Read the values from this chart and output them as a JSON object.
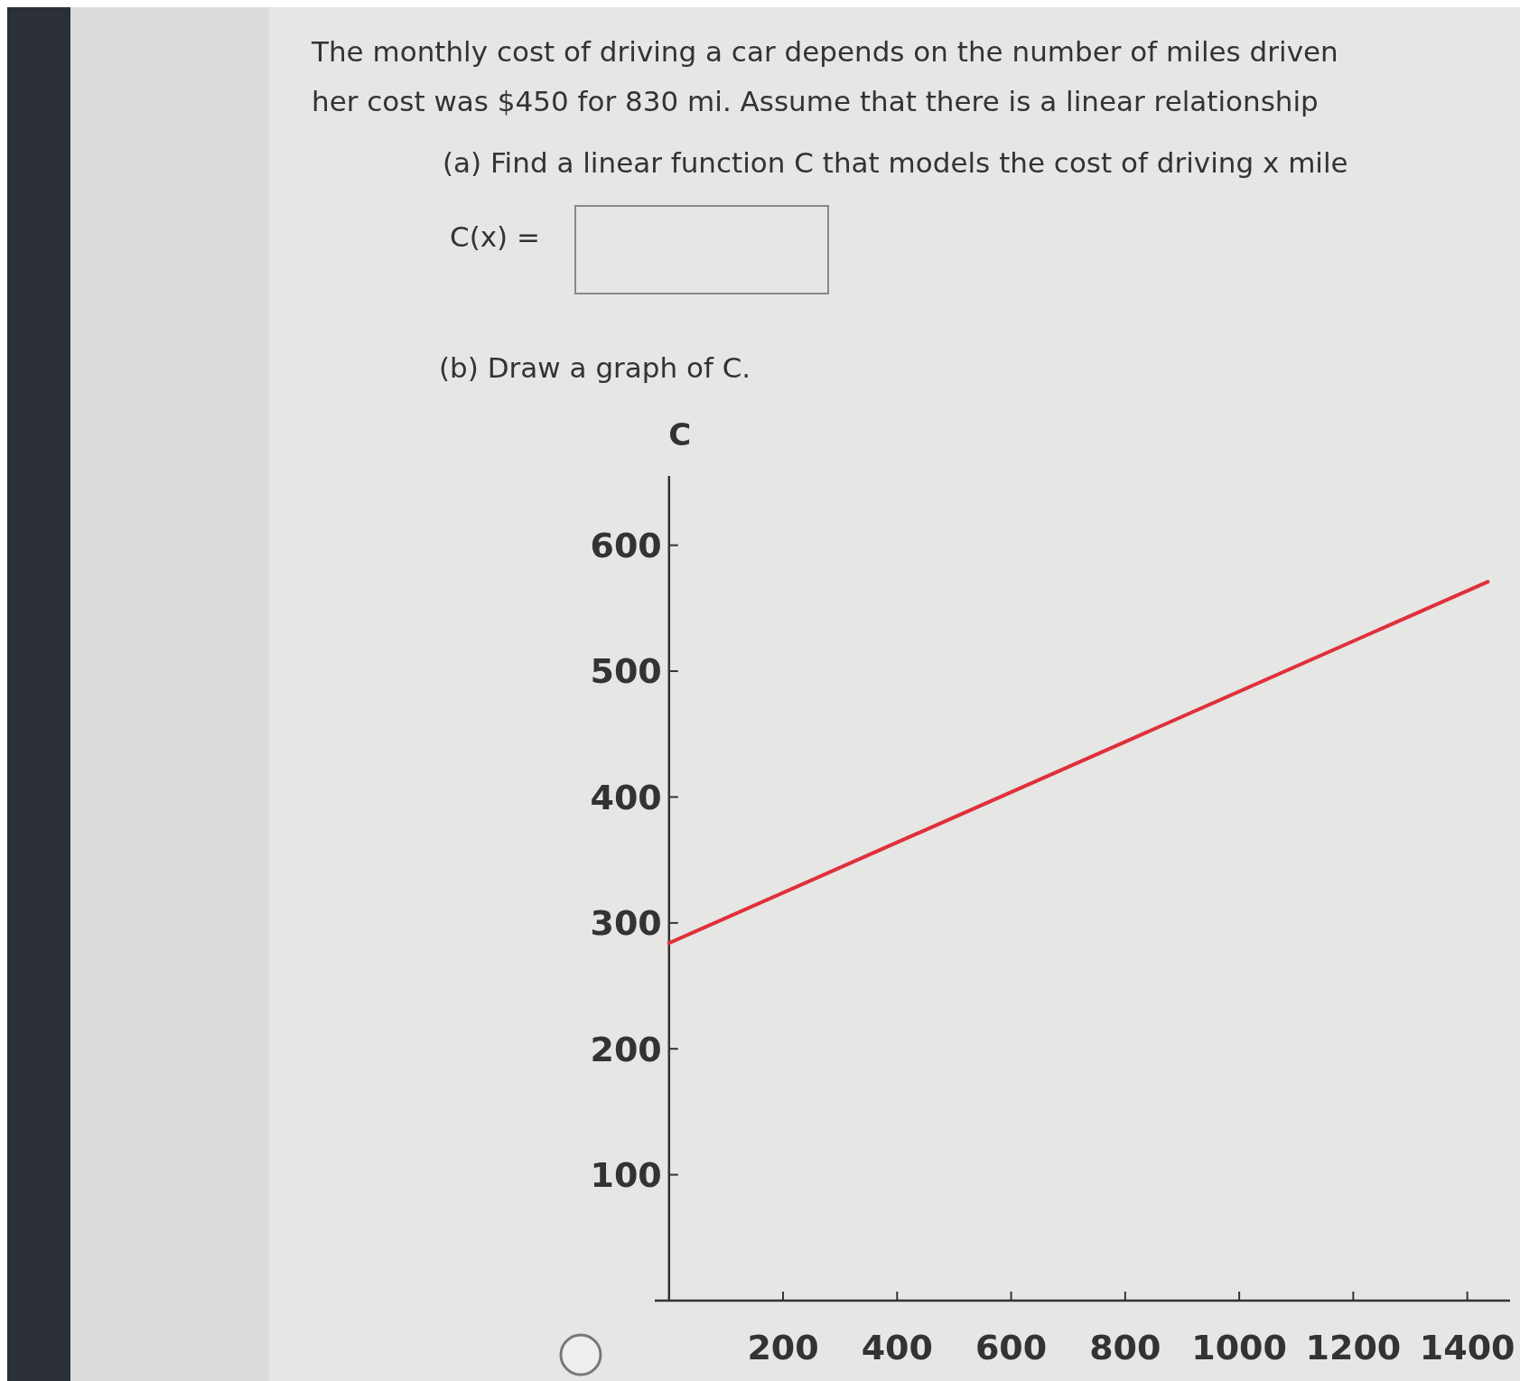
{
  "chart_data": {
    "type": "line",
    "title": "The monthly cost of driving a car depends on the number of miles driven",
    "annotations": [
      "her cost was $450 for 830 mi. Assume that there is a linear relationship",
      "(a) Find a linear function C that models the cost of driving x mile",
      "C(x) =",
      "(b) Draw a graph of C."
    ],
    "ylabel": "C",
    "x": [
      0,
      1436
    ],
    "series": [
      {
        "color": "#e0303a",
        "values": [
          284,
          571
        ]
      }
    ],
    "xlim": [
      -25,
      1475
    ],
    "ylim": [
      0,
      655
    ],
    "xticks": [
      200,
      400,
      600,
      800,
      1000,
      1200,
      1400
    ],
    "yticks": [
      100,
      200,
      300,
      400,
      500,
      600
    ],
    "grid": false,
    "line_style": "solid"
  }
}
